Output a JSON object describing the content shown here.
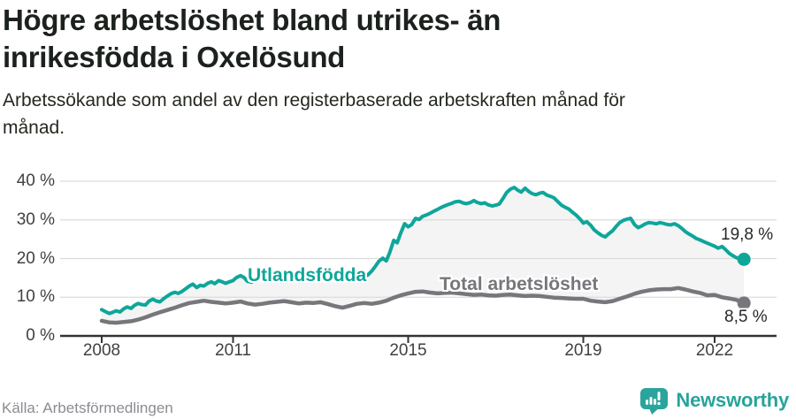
{
  "header": {
    "title_line1": "Högre arbetslöshet bland utrikes- än",
    "title_line2": "inrikesfödda i Oxelösund",
    "subtitle_line1": "Arbetssökande som andel av den registerbaserade arbetskraften månad för",
    "subtitle_line2": "månad."
  },
  "footer": {
    "source": "Källa: Arbetsförmedlingen",
    "brand": "Newsworthy",
    "brand_color": "#28a39b"
  },
  "chart_data": {
    "type": "line",
    "title": "Högre arbetslöshet bland utrikes- än inrikesfödda i Oxelösund",
    "subtitle": "Arbetssökande som andel av den registerbaserade arbetskraften månad för månad.",
    "xlabel": "",
    "ylabel": "",
    "unit": "%",
    "xlim": [
      2008,
      2022.75
    ],
    "ylim": [
      0,
      40
    ],
    "grid": "horizontal",
    "grid_color": "#dcdcdc",
    "axis_color": "#333333",
    "band_fill": "#f4f4f4",
    "y_ticks": [
      {
        "value": 0,
        "label": "0 %"
      },
      {
        "value": 10,
        "label": "10 %"
      },
      {
        "value": 20,
        "label": "20 %"
      },
      {
        "value": 30,
        "label": "30 %"
      },
      {
        "value": 40,
        "label": "40 %"
      }
    ],
    "x_ticks": [
      {
        "value": 2008,
        "label": "2008"
      },
      {
        "value": 2011,
        "label": "2011"
      },
      {
        "value": 2015,
        "label": "2015"
      },
      {
        "value": 2019,
        "label": "2019"
      },
      {
        "value": 2022,
        "label": "2022"
      }
    ],
    "legend_position": "inline-labels",
    "series": [
      {
        "id": "utlandsfodda",
        "name": "Utlandsfödda",
        "color": "#0fa69a",
        "width": 4,
        "end_label": "19,8 %",
        "end_value": 19.8,
        "points": [
          [
            2008.0,
            6.8
          ],
          [
            2008.08,
            6.3
          ],
          [
            2008.17,
            5.8
          ],
          [
            2008.25,
            6.1
          ],
          [
            2008.33,
            6.5
          ],
          [
            2008.42,
            6.2
          ],
          [
            2008.5,
            7.0
          ],
          [
            2008.58,
            7.5
          ],
          [
            2008.67,
            7.1
          ],
          [
            2008.75,
            7.9
          ],
          [
            2008.83,
            8.4
          ],
          [
            2008.92,
            8.1
          ],
          [
            2009.0,
            8.0
          ],
          [
            2009.08,
            9.0
          ],
          [
            2009.17,
            9.5
          ],
          [
            2009.25,
            9.0
          ],
          [
            2009.33,
            8.8
          ],
          [
            2009.42,
            9.7
          ],
          [
            2009.5,
            10.3
          ],
          [
            2009.58,
            10.9
          ],
          [
            2009.67,
            11.3
          ],
          [
            2009.75,
            11.0
          ],
          [
            2009.83,
            11.5
          ],
          [
            2009.92,
            12.2
          ],
          [
            2010.0,
            12.9
          ],
          [
            2010.08,
            13.4
          ],
          [
            2010.17,
            12.5
          ],
          [
            2010.25,
            13.1
          ],
          [
            2010.33,
            12.9
          ],
          [
            2010.42,
            13.6
          ],
          [
            2010.5,
            14.0
          ],
          [
            2010.58,
            13.5
          ],
          [
            2010.67,
            14.3
          ],
          [
            2010.75,
            14.0
          ],
          [
            2010.83,
            13.6
          ],
          [
            2010.92,
            14.0
          ],
          [
            2011.0,
            14.3
          ],
          [
            2011.08,
            15.1
          ],
          [
            2011.17,
            15.6
          ],
          [
            2011.25,
            15.1
          ],
          [
            2011.33,
            14.1
          ],
          [
            2011.42,
            13.9
          ],
          [
            2011.5,
            14.5
          ],
          [
            2011.58,
            14.9
          ],
          [
            2011.67,
            14.6
          ],
          [
            2011.75,
            15.1
          ],
          [
            2011.83,
            15.4
          ],
          [
            2011.92,
            15.2
          ],
          [
            2012.0,
            15.7
          ],
          [
            2012.08,
            16.3
          ],
          [
            2012.17,
            16.4
          ],
          [
            2012.25,
            15.8
          ],
          [
            2012.33,
            15.2
          ],
          [
            2012.42,
            15.0
          ],
          [
            2012.5,
            15.3
          ],
          [
            2012.58,
            14.9
          ],
          [
            2012.67,
            15.2
          ],
          [
            2012.75,
            14.9
          ],
          [
            2012.83,
            15.3
          ],
          [
            2012.92,
            15.1
          ],
          [
            2013.0,
            15.4
          ],
          [
            2013.08,
            15.9
          ],
          [
            2013.17,
            16.3
          ],
          [
            2013.25,
            16.6
          ],
          [
            2013.33,
            16.0
          ],
          [
            2013.42,
            15.5
          ],
          [
            2013.5,
            15.1
          ],
          [
            2013.58,
            14.7
          ],
          [
            2013.67,
            14.4
          ],
          [
            2013.75,
            14.7
          ],
          [
            2013.83,
            14.5
          ],
          [
            2013.92,
            14.9
          ],
          [
            2014.0,
            15.2
          ],
          [
            2014.08,
            15.8
          ],
          [
            2014.17,
            16.8
          ],
          [
            2014.25,
            18.0
          ],
          [
            2014.33,
            19.3
          ],
          [
            2014.42,
            20.1
          ],
          [
            2014.5,
            19.4
          ],
          [
            2014.58,
            21.6
          ],
          [
            2014.67,
            24.7
          ],
          [
            2014.75,
            24.1
          ],
          [
            2014.83,
            26.6
          ],
          [
            2014.92,
            29.0
          ],
          [
            2015.0,
            28.2
          ],
          [
            2015.08,
            28.8
          ],
          [
            2015.17,
            30.4
          ],
          [
            2015.25,
            30.1
          ],
          [
            2015.33,
            30.9
          ],
          [
            2015.42,
            31.3
          ],
          [
            2015.5,
            31.7
          ],
          [
            2015.58,
            32.2
          ],
          [
            2015.67,
            32.7
          ],
          [
            2015.75,
            33.2
          ],
          [
            2015.83,
            33.6
          ],
          [
            2015.92,
            34.0
          ],
          [
            2016.0,
            34.3
          ],
          [
            2016.08,
            34.7
          ],
          [
            2016.17,
            34.8
          ],
          [
            2016.25,
            34.4
          ],
          [
            2016.33,
            34.2
          ],
          [
            2016.42,
            34.5
          ],
          [
            2016.5,
            35.0
          ],
          [
            2016.58,
            34.5
          ],
          [
            2016.67,
            34.2
          ],
          [
            2016.75,
            34.4
          ],
          [
            2016.83,
            33.9
          ],
          [
            2016.92,
            33.6
          ],
          [
            2017.0,
            33.8
          ],
          [
            2017.08,
            34.1
          ],
          [
            2017.17,
            35.6
          ],
          [
            2017.25,
            37.1
          ],
          [
            2017.33,
            37.9
          ],
          [
            2017.42,
            38.4
          ],
          [
            2017.5,
            37.7
          ],
          [
            2017.58,
            37.2
          ],
          [
            2017.67,
            38.2
          ],
          [
            2017.75,
            37.4
          ],
          [
            2017.83,
            36.8
          ],
          [
            2017.92,
            36.5
          ],
          [
            2018.0,
            36.9
          ],
          [
            2018.08,
            37.1
          ],
          [
            2018.17,
            36.4
          ],
          [
            2018.25,
            36.1
          ],
          [
            2018.33,
            35.7
          ],
          [
            2018.42,
            34.7
          ],
          [
            2018.5,
            33.8
          ],
          [
            2018.58,
            33.3
          ],
          [
            2018.67,
            32.8
          ],
          [
            2018.75,
            32.0
          ],
          [
            2018.83,
            31.3
          ],
          [
            2018.92,
            30.3
          ],
          [
            2019.0,
            29.2
          ],
          [
            2019.08,
            29.5
          ],
          [
            2019.17,
            28.6
          ],
          [
            2019.25,
            27.4
          ],
          [
            2019.33,
            26.7
          ],
          [
            2019.42,
            26.0
          ],
          [
            2019.5,
            25.6
          ],
          [
            2019.58,
            26.4
          ],
          [
            2019.67,
            27.2
          ],
          [
            2019.75,
            28.3
          ],
          [
            2019.83,
            29.3
          ],
          [
            2019.92,
            29.9
          ],
          [
            2020.0,
            30.2
          ],
          [
            2020.08,
            30.4
          ],
          [
            2020.17,
            28.8
          ],
          [
            2020.25,
            28.0
          ],
          [
            2020.33,
            28.4
          ],
          [
            2020.42,
            29.0
          ],
          [
            2020.5,
            29.3
          ],
          [
            2020.58,
            29.2
          ],
          [
            2020.67,
            29.0
          ],
          [
            2020.75,
            29.3
          ],
          [
            2020.83,
            29.1
          ],
          [
            2020.92,
            28.8
          ],
          [
            2021.0,
            28.7
          ],
          [
            2021.08,
            29.0
          ],
          [
            2021.17,
            28.5
          ],
          [
            2021.25,
            27.8
          ],
          [
            2021.33,
            27.0
          ],
          [
            2021.42,
            26.3
          ],
          [
            2021.5,
            25.8
          ],
          [
            2021.58,
            25.2
          ],
          [
            2021.67,
            24.8
          ],
          [
            2021.75,
            24.4
          ],
          [
            2021.83,
            24.0
          ],
          [
            2021.92,
            23.6
          ],
          [
            2022.0,
            23.2
          ],
          [
            2022.08,
            22.7
          ],
          [
            2022.17,
            23.1
          ],
          [
            2022.25,
            22.3
          ],
          [
            2022.33,
            21.4
          ],
          [
            2022.42,
            20.7
          ],
          [
            2022.5,
            20.2
          ],
          [
            2022.58,
            19.9
          ],
          [
            2022.67,
            19.8
          ]
        ]
      },
      {
        "id": "total",
        "name": "Total arbetslöshet",
        "color": "#77767b",
        "width": 4.5,
        "end_label": "8,5 %",
        "end_value": 8.5,
        "points": [
          [
            2008.0,
            3.9
          ],
          [
            2008.17,
            3.5
          ],
          [
            2008.33,
            3.4
          ],
          [
            2008.5,
            3.6
          ],
          [
            2008.67,
            3.8
          ],
          [
            2008.83,
            4.2
          ],
          [
            2009.0,
            4.8
          ],
          [
            2009.17,
            5.5
          ],
          [
            2009.33,
            6.1
          ],
          [
            2009.5,
            6.7
          ],
          [
            2009.67,
            7.3
          ],
          [
            2009.83,
            7.9
          ],
          [
            2010.0,
            8.5
          ],
          [
            2010.17,
            8.8
          ],
          [
            2010.33,
            9.1
          ],
          [
            2010.5,
            8.8
          ],
          [
            2010.67,
            8.6
          ],
          [
            2010.83,
            8.4
          ],
          [
            2011.0,
            8.6
          ],
          [
            2011.17,
            8.9
          ],
          [
            2011.33,
            8.4
          ],
          [
            2011.5,
            8.1
          ],
          [
            2011.67,
            8.3
          ],
          [
            2011.83,
            8.6
          ],
          [
            2012.0,
            8.8
          ],
          [
            2012.17,
            9.0
          ],
          [
            2012.33,
            8.7
          ],
          [
            2012.5,
            8.4
          ],
          [
            2012.67,
            8.6
          ],
          [
            2012.83,
            8.5
          ],
          [
            2013.0,
            8.7
          ],
          [
            2013.17,
            8.2
          ],
          [
            2013.33,
            7.7
          ],
          [
            2013.5,
            7.3
          ],
          [
            2013.67,
            7.8
          ],
          [
            2013.83,
            8.3
          ],
          [
            2014.0,
            8.5
          ],
          [
            2014.17,
            8.3
          ],
          [
            2014.33,
            8.6
          ],
          [
            2014.5,
            9.1
          ],
          [
            2014.67,
            9.9
          ],
          [
            2014.83,
            10.5
          ],
          [
            2015.0,
            11.0
          ],
          [
            2015.17,
            11.4
          ],
          [
            2015.33,
            11.5
          ],
          [
            2015.5,
            11.2
          ],
          [
            2015.67,
            11.0
          ],
          [
            2015.83,
            11.1
          ],
          [
            2016.0,
            11.2
          ],
          [
            2016.17,
            11.0
          ],
          [
            2016.33,
            10.8
          ],
          [
            2016.5,
            10.6
          ],
          [
            2016.67,
            10.7
          ],
          [
            2016.83,
            10.5
          ],
          [
            2017.0,
            10.4
          ],
          [
            2017.17,
            10.6
          ],
          [
            2017.33,
            10.7
          ],
          [
            2017.5,
            10.5
          ],
          [
            2017.67,
            10.3
          ],
          [
            2017.83,
            10.4
          ],
          [
            2018.0,
            10.3
          ],
          [
            2018.17,
            10.1
          ],
          [
            2018.33,
            9.9
          ],
          [
            2018.5,
            9.8
          ],
          [
            2018.67,
            9.7
          ],
          [
            2018.83,
            9.6
          ],
          [
            2019.0,
            9.6
          ],
          [
            2019.17,
            9.1
          ],
          [
            2019.33,
            8.9
          ],
          [
            2019.5,
            8.7
          ],
          [
            2019.67,
            9.0
          ],
          [
            2019.83,
            9.6
          ],
          [
            2020.0,
            10.2
          ],
          [
            2020.17,
            10.9
          ],
          [
            2020.33,
            11.4
          ],
          [
            2020.5,
            11.8
          ],
          [
            2020.67,
            12.0
          ],
          [
            2020.83,
            12.1
          ],
          [
            2021.0,
            12.1
          ],
          [
            2021.17,
            12.4
          ],
          [
            2021.33,
            12.0
          ],
          [
            2021.5,
            11.5
          ],
          [
            2021.67,
            11.1
          ],
          [
            2021.83,
            10.5
          ],
          [
            2022.0,
            10.6
          ],
          [
            2022.17,
            10.0
          ],
          [
            2022.33,
            9.7
          ],
          [
            2022.5,
            9.3
          ],
          [
            2022.58,
            8.9
          ],
          [
            2022.67,
            8.5
          ]
        ]
      }
    ]
  }
}
